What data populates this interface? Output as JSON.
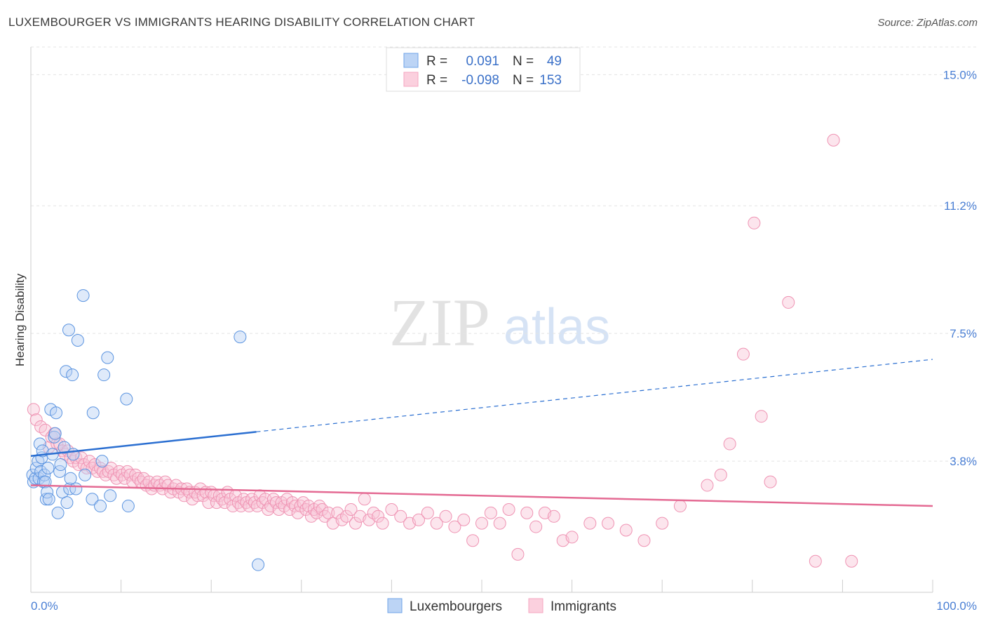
{
  "title": "LUXEMBOURGER VS IMMIGRANTS HEARING DISABILITY CORRELATION CHART",
  "source": "Source: ZipAtlas.com",
  "watermark": {
    "zip": "ZIP",
    "atlas": "atlas"
  },
  "chart_data": {
    "type": "scatter",
    "ylabel": "Hearing Disability",
    "xlim": [
      0,
      100
    ],
    "ylim": [
      0,
      15.8
    ],
    "x_tick_labels": {
      "left": "0.0%",
      "right": "100.0%"
    },
    "y_ticks": [
      {
        "value": 3.8,
        "label": "3.8%"
      },
      {
        "value": 7.5,
        "label": "7.5%"
      },
      {
        "value": 11.2,
        "label": "11.2%"
      },
      {
        "value": 15.0,
        "label": "15.0%"
      }
    ],
    "grid": "horizontal dashed",
    "legend_position": "top-center",
    "series": [
      {
        "name": "Luxembourgers",
        "color": "#6fa3e8",
        "line_color": "#2b6fd1",
        "r_label": "R =",
        "r_value": "0.091",
        "n_label": "N =",
        "n_value": "49",
        "trend": {
          "x0": 0,
          "y0": 3.95,
          "x1": 25,
          "y1": 4.65,
          "x_end": 100,
          "y_end": 6.75
        },
        "points": [
          [
            0.2,
            3.4
          ],
          [
            0.3,
            3.2
          ],
          [
            0.5,
            3.3
          ],
          [
            0.6,
            3.6
          ],
          [
            0.8,
            3.8
          ],
          [
            0.9,
            3.3
          ],
          [
            1.0,
            4.3
          ],
          [
            1.1,
            3.5
          ],
          [
            1.2,
            3.9
          ],
          [
            1.3,
            4.1
          ],
          [
            1.4,
            3.2
          ],
          [
            1.5,
            3.4
          ],
          [
            1.6,
            3.2
          ],
          [
            1.7,
            2.7
          ],
          [
            1.8,
            2.9
          ],
          [
            1.9,
            3.6
          ],
          [
            2.0,
            2.7
          ],
          [
            2.2,
            5.3
          ],
          [
            2.4,
            4.0
          ],
          [
            2.6,
            4.5
          ],
          [
            2.7,
            4.6
          ],
          [
            2.8,
            5.2
          ],
          [
            3.0,
            2.3
          ],
          [
            3.2,
            3.5
          ],
          [
            3.3,
            3.7
          ],
          [
            3.5,
            2.9
          ],
          [
            3.7,
            4.2
          ],
          [
            3.9,
            6.4
          ],
          [
            4.0,
            2.6
          ],
          [
            4.2,
            7.6
          ],
          [
            4.3,
            3.0
          ],
          [
            4.4,
            3.3
          ],
          [
            4.6,
            6.3
          ],
          [
            4.7,
            4.0
          ],
          [
            5.0,
            3.0
          ],
          [
            5.2,
            7.3
          ],
          [
            5.8,
            8.6
          ],
          [
            6.0,
            3.4
          ],
          [
            6.8,
            2.7
          ],
          [
            6.9,
            5.2
          ],
          [
            7.7,
            2.5
          ],
          [
            7.9,
            3.8
          ],
          [
            8.1,
            6.3
          ],
          [
            8.5,
            6.8
          ],
          [
            8.8,
            2.8
          ],
          [
            10.6,
            5.6
          ],
          [
            10.8,
            2.5
          ],
          [
            23.2,
            7.4
          ],
          [
            25.2,
            0.8
          ]
        ]
      },
      {
        "name": "Immigrants",
        "color": "#f4a6c0",
        "line_color": "#e46a93",
        "r_label": "R =",
        "r_value": "-0.098",
        "n_label": "N =",
        "n_value": "153",
        "trend": {
          "x0": 0,
          "y0": 3.1,
          "x1": 100,
          "y1": 2.5
        },
        "points": [
          [
            0.3,
            5.3
          ],
          [
            0.6,
            5.0
          ],
          [
            1.1,
            4.8
          ],
          [
            1.6,
            4.7
          ],
          [
            2.0,
            4.2
          ],
          [
            2.3,
            4.5
          ],
          [
            2.6,
            4.6
          ],
          [
            2.9,
            4.3
          ],
          [
            3.2,
            4.3
          ],
          [
            3.5,
            4.1
          ],
          [
            3.8,
            4.0
          ],
          [
            4.1,
            4.1
          ],
          [
            4.4,
            3.9
          ],
          [
            4.7,
            3.8
          ],
          [
            5.0,
            3.9
          ],
          [
            5.3,
            3.7
          ],
          [
            5.6,
            3.9
          ],
          [
            5.9,
            3.7
          ],
          [
            6.2,
            3.6
          ],
          [
            6.5,
            3.8
          ],
          [
            6.8,
            3.6
          ],
          [
            7.1,
            3.7
          ],
          [
            7.4,
            3.5
          ],
          [
            7.7,
            3.6
          ],
          [
            8.0,
            3.5
          ],
          [
            8.3,
            3.4
          ],
          [
            8.6,
            3.5
          ],
          [
            8.9,
            3.6
          ],
          [
            9.2,
            3.4
          ],
          [
            9.5,
            3.3
          ],
          [
            9.8,
            3.5
          ],
          [
            10.1,
            3.4
          ],
          [
            10.4,
            3.3
          ],
          [
            10.7,
            3.5
          ],
          [
            11.0,
            3.4
          ],
          [
            11.3,
            3.2
          ],
          [
            11.6,
            3.4
          ],
          [
            11.9,
            3.3
          ],
          [
            12.2,
            3.2
          ],
          [
            12.5,
            3.3
          ],
          [
            12.8,
            3.1
          ],
          [
            13.1,
            3.2
          ],
          [
            13.4,
            3.0
          ],
          [
            13.7,
            3.1
          ],
          [
            14.0,
            3.2
          ],
          [
            14.3,
            3.1
          ],
          [
            14.6,
            3.0
          ],
          [
            14.9,
            3.2
          ],
          [
            15.2,
            3.1
          ],
          [
            15.5,
            2.9
          ],
          [
            15.8,
            3.0
          ],
          [
            16.1,
            3.1
          ],
          [
            16.4,
            2.9
          ],
          [
            16.7,
            3.0
          ],
          [
            17.0,
            2.8
          ],
          [
            17.3,
            3.0
          ],
          [
            17.6,
            2.9
          ],
          [
            17.9,
            2.7
          ],
          [
            18.2,
            2.9
          ],
          [
            18.5,
            2.8
          ],
          [
            18.8,
            3.0
          ],
          [
            19.1,
            2.8
          ],
          [
            19.4,
            2.9
          ],
          [
            19.7,
            2.6
          ],
          [
            20.0,
            2.9
          ],
          [
            20.3,
            2.8
          ],
          [
            20.6,
            2.6
          ],
          [
            20.9,
            2.8
          ],
          [
            21.2,
            2.7
          ],
          [
            21.5,
            2.6
          ],
          [
            21.8,
            2.9
          ],
          [
            22.1,
            2.7
          ],
          [
            22.4,
            2.5
          ],
          [
            22.7,
            2.8
          ],
          [
            23.0,
            2.6
          ],
          [
            23.3,
            2.5
          ],
          [
            23.6,
            2.7
          ],
          [
            23.9,
            2.6
          ],
          [
            24.2,
            2.5
          ],
          [
            24.5,
            2.7
          ],
          [
            24.8,
            2.6
          ],
          [
            25.1,
            2.5
          ],
          [
            25.4,
            2.8
          ],
          [
            25.7,
            2.6
          ],
          [
            26.0,
            2.7
          ],
          [
            26.3,
            2.4
          ],
          [
            26.6,
            2.5
          ],
          [
            26.9,
            2.7
          ],
          [
            27.2,
            2.6
          ],
          [
            27.5,
            2.4
          ],
          [
            27.8,
            2.6
          ],
          [
            28.1,
            2.5
          ],
          [
            28.4,
            2.7
          ],
          [
            28.7,
            2.4
          ],
          [
            29.0,
            2.6
          ],
          [
            29.3,
            2.5
          ],
          [
            29.6,
            2.3
          ],
          [
            29.9,
            2.5
          ],
          [
            30.2,
            2.6
          ],
          [
            30.5,
            2.4
          ],
          [
            30.8,
            2.5
          ],
          [
            31.1,
            2.2
          ],
          [
            31.4,
            2.4
          ],
          [
            31.7,
            2.3
          ],
          [
            32.0,
            2.5
          ],
          [
            32.3,
            2.4
          ],
          [
            32.6,
            2.2
          ],
          [
            33.0,
            2.3
          ],
          [
            33.5,
            2.0
          ],
          [
            34.0,
            2.3
          ],
          [
            34.5,
            2.1
          ],
          [
            35.0,
            2.2
          ],
          [
            35.5,
            2.4
          ],
          [
            36.0,
            2.0
          ],
          [
            36.5,
            2.2
          ],
          [
            37.0,
            2.7
          ],
          [
            37.5,
            2.1
          ],
          [
            38.0,
            2.3
          ],
          [
            38.5,
            2.2
          ],
          [
            39.0,
            2.0
          ],
          [
            40.0,
            2.4
          ],
          [
            41.0,
            2.2
          ],
          [
            42.0,
            2.0
          ],
          [
            43.0,
            2.1
          ],
          [
            44.0,
            2.3
          ],
          [
            45.0,
            2.0
          ],
          [
            46.0,
            2.2
          ],
          [
            47.0,
            1.9
          ],
          [
            48.0,
            2.1
          ],
          [
            49.0,
            1.5
          ],
          [
            50.0,
            2.0
          ],
          [
            51.0,
            2.3
          ],
          [
            52.0,
            2.0
          ],
          [
            53.0,
            2.4
          ],
          [
            54.0,
            1.1
          ],
          [
            55.0,
            2.3
          ],
          [
            56.0,
            1.9
          ],
          [
            57.0,
            2.3
          ],
          [
            58.0,
            2.2
          ],
          [
            59.0,
            1.5
          ],
          [
            60.0,
            1.6
          ],
          [
            62.0,
            2.0
          ],
          [
            64.0,
            2.0
          ],
          [
            66.0,
            1.8
          ],
          [
            68.0,
            1.5
          ],
          [
            70.0,
            2.0
          ],
          [
            72.0,
            2.5
          ],
          [
            75.0,
            3.1
          ],
          [
            76.5,
            3.4
          ],
          [
            77.5,
            4.3
          ],
          [
            79.0,
            6.9
          ],
          [
            81.0,
            5.1
          ],
          [
            82.0,
            3.2
          ],
          [
            84.0,
            8.4
          ],
          [
            87.0,
            0.9
          ],
          [
            89.0,
            13.1
          ],
          [
            91.0,
            0.9
          ],
          [
            80.2,
            10.7
          ]
        ]
      }
    ]
  },
  "bottom_legend": [
    {
      "label": "Luxembourgers"
    },
    {
      "label": "Immigrants"
    }
  ]
}
